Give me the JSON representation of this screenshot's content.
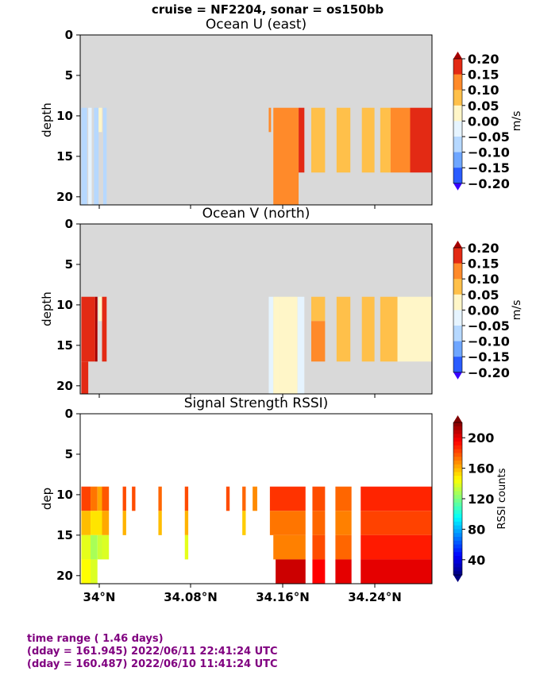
{
  "suptitle": "cruise = NF2204,  sonar = os150bb",
  "colors": {
    "nodata": "#d9d9d9",
    "footer": "#800080"
  },
  "x_ticks": [
    "34°N",
    "34.08°N",
    "34.16°N",
    "34.24°N"
  ],
  "panels": [
    {
      "title": "Ocean U (east)",
      "ylabel": "depth",
      "yticks": [
        "0",
        "5",
        "10",
        "15",
        "20"
      ],
      "colorbar": {
        "label": "m/s",
        "tick_labels": [
          "0.20",
          "0.15",
          "0.10",
          "0.05",
          "0.00",
          "−0.05",
          "−0.10",
          "−0.15",
          "−0.20"
        ]
      }
    },
    {
      "title": "Ocean V (north)",
      "ylabel": "depth",
      "yticks": [
        "0",
        "5",
        "10",
        "15",
        "20"
      ],
      "colorbar": {
        "label": "m/s",
        "tick_labels": [
          "0.20",
          "0.15",
          "0.10",
          "0.05",
          "0.00",
          "−0.05",
          "−0.10",
          "−0.15",
          "−0.20"
        ]
      }
    },
    {
      "title": "Signal Strength RSSI)",
      "ylabel": "dep",
      "yticks": [
        "0",
        "5",
        "10",
        "15",
        "20"
      ],
      "colorbar": {
        "label": "RSSI counts",
        "tick_labels": [
          "200",
          "160",
          "120",
          "80",
          "40"
        ]
      }
    }
  ],
  "footer": {
    "line1": "time range ( 1.46 days)",
    "line2": "(dday = 161.945) 2022/06/11 22:41:24 UTC",
    "line3": "(dday = 160.487) 2022/06/10 11:41:24 UTC"
  },
  "chart_data": [
    {
      "type": "heatmap",
      "title": "Ocean U (east)",
      "ylabel": "depth",
      "colorbar_label": "m/s",
      "x_unit": "latitude (°N)",
      "xlim": [
        33.987,
        34.293
      ],
      "ylim": [
        21,
        0
      ],
      "vlim": [
        -0.2,
        0.2
      ],
      "cells": [
        {
          "x": [
            33.988,
            33.993
          ],
          "y": [
            9,
            21
          ],
          "v": -0.07
        },
        {
          "x": [
            33.994,
            33.997
          ],
          "y": [
            9,
            21
          ],
          "v": -0.03
        },
        {
          "x": [
            33.999,
            34.003
          ],
          "y": [
            9,
            21
          ],
          "v": -0.06
        },
        {
          "x": [
            34.003,
            34.006
          ],
          "y": [
            9,
            12
          ],
          "v": 0.0
        },
        {
          "x": [
            34.007,
            34.01
          ],
          "y": [
            9,
            21
          ],
          "v": -0.06
        },
        {
          "x": [
            34.151,
            34.153
          ],
          "y": [
            9,
            12
          ],
          "v": 0.12
        },
        {
          "x": [
            34.155,
            34.177
          ],
          "y": [
            9,
            21
          ],
          "v": 0.12
        },
        {
          "x": [
            34.177,
            34.182
          ],
          "y": [
            9,
            17
          ],
          "v": 0.17
        },
        {
          "x": [
            34.188,
            34.2
          ],
          "y": [
            9,
            17
          ],
          "v": 0.07
        },
        {
          "x": [
            34.21,
            34.222
          ],
          "y": [
            9,
            17
          ],
          "v": 0.07
        },
        {
          "x": [
            34.232,
            34.243
          ],
          "y": [
            9,
            17
          ],
          "v": 0.07
        },
        {
          "x": [
            34.248,
            34.257
          ],
          "y": [
            9,
            17
          ],
          "v": 0.07
        },
        {
          "x": [
            34.257,
            34.274
          ],
          "y": [
            9,
            17
          ],
          "v": 0.12
        },
        {
          "x": [
            34.274,
            34.293
          ],
          "y": [
            9,
            17
          ],
          "v": 0.17
        }
      ]
    },
    {
      "type": "heatmap",
      "title": "Ocean V (north)",
      "ylabel": "depth",
      "colorbar_label": "m/s",
      "x_unit": "latitude (°N)",
      "xlim": [
        33.987,
        34.293
      ],
      "ylim": [
        21,
        0
      ],
      "vlim": [
        -0.2,
        0.2
      ],
      "cells": [
        {
          "x": [
            33.988,
            34.0
          ],
          "y": [
            9,
            17
          ],
          "v": 0.17
        },
        {
          "x": [
            33.988,
            33.994
          ],
          "y": [
            17,
            21
          ],
          "v": 0.17
        },
        {
          "x": [
            34.0,
            34.002
          ],
          "y": [
            9,
            17
          ],
          "v": 0.22
        },
        {
          "x": [
            34.003,
            34.006
          ],
          "y": [
            9,
            12
          ],
          "v": 0.03
        },
        {
          "x": [
            34.006,
            34.01
          ],
          "y": [
            9,
            17
          ],
          "v": 0.17
        },
        {
          "x": [
            34.151,
            34.155
          ],
          "y": [
            9,
            21
          ],
          "v": -0.03
        },
        {
          "x": [
            34.155,
            34.16
          ],
          "y": [
            9,
            21
          ],
          "v": 0.03
        },
        {
          "x": [
            34.16,
            34.176
          ],
          "y": [
            9,
            21
          ],
          "v": 0.03
        },
        {
          "x": [
            34.176,
            34.182
          ],
          "y": [
            9,
            21
          ],
          "v": -0.03
        },
        {
          "x": [
            34.188,
            34.2
          ],
          "y": [
            9,
            12
          ],
          "v": 0.07
        },
        {
          "x": [
            34.188,
            34.2
          ],
          "y": [
            12,
            17
          ],
          "v": 0.12
        },
        {
          "x": [
            34.21,
            34.222
          ],
          "y": [
            9,
            17
          ],
          "v": 0.07
        },
        {
          "x": [
            34.232,
            34.243
          ],
          "y": [
            9,
            17
          ],
          "v": 0.07
        },
        {
          "x": [
            34.248,
            34.263
          ],
          "y": [
            9,
            17
          ],
          "v": 0.07
        },
        {
          "x": [
            34.263,
            34.293
          ],
          "y": [
            9,
            17
          ],
          "v": 0.03
        }
      ]
    },
    {
      "type": "heatmap",
      "title": "Signal Strength RSSI)",
      "ylabel": "dep",
      "colorbar_label": "RSSI counts",
      "x_unit": "latitude (°N)",
      "xlim": [
        33.987,
        34.293
      ],
      "ylim": [
        21,
        0
      ],
      "vlim": [
        20,
        220
      ],
      "cells": [
        {
          "x": [
            33.988,
            33.996
          ],
          "y": [
            9,
            12
          ],
          "v": 182
        },
        {
          "x": [
            33.996,
            34.002
          ],
          "y": [
            9,
            12
          ],
          "v": 172
        },
        {
          "x": [
            34.002,
            34.006
          ],
          "y": [
            9,
            12
          ],
          "v": 162
        },
        {
          "x": [
            34.006,
            34.012
          ],
          "y": [
            9,
            12
          ],
          "v": 178
        },
        {
          "x": [
            34.024,
            34.027
          ],
          "y": [
            9,
            12
          ],
          "v": 180
        },
        {
          "x": [
            34.032,
            34.035
          ],
          "y": [
            9,
            12
          ],
          "v": 180
        },
        {
          "x": [
            34.055,
            34.058
          ],
          "y": [
            9,
            12
          ],
          "v": 175
        },
        {
          "x": [
            34.078,
            34.081
          ],
          "y": [
            9,
            12
          ],
          "v": 180
        },
        {
          "x": [
            34.114,
            34.117
          ],
          "y": [
            9,
            12
          ],
          "v": 180
        },
        {
          "x": [
            34.128,
            34.131
          ],
          "y": [
            9,
            12
          ],
          "v": 175
        },
        {
          "x": [
            34.137,
            34.141
          ],
          "y": [
            9,
            12
          ],
          "v": 168
        },
        {
          "x": [
            34.152,
            34.183
          ],
          "y": [
            9,
            12
          ],
          "v": 185
        },
        {
          "x": [
            34.189,
            34.2
          ],
          "y": [
            9,
            12
          ],
          "v": 180
        },
        {
          "x": [
            34.209,
            34.223
          ],
          "y": [
            9,
            12
          ],
          "v": 175
        },
        {
          "x": [
            34.231,
            34.293
          ],
          "y": [
            9,
            12
          ],
          "v": 188
        },
        {
          "x": [
            33.988,
            33.996
          ],
          "y": [
            12,
            15
          ],
          "v": 158
        },
        {
          "x": [
            33.996,
            34.006
          ],
          "y": [
            12,
            15
          ],
          "v": 150
        },
        {
          "x": [
            34.006,
            34.012
          ],
          "y": [
            12,
            15
          ],
          "v": 162
        },
        {
          "x": [
            34.024,
            34.027
          ],
          "y": [
            12,
            15
          ],
          "v": 160
        },
        {
          "x": [
            34.055,
            34.058
          ],
          "y": [
            12,
            15
          ],
          "v": 158
        },
        {
          "x": [
            34.078,
            34.081
          ],
          "y": [
            12,
            15
          ],
          "v": 160
        },
        {
          "x": [
            34.128,
            34.131
          ],
          "y": [
            12,
            15
          ],
          "v": 155
        },
        {
          "x": [
            34.152,
            34.183
          ],
          "y": [
            12,
            15
          ],
          "v": 172
        },
        {
          "x": [
            34.189,
            34.2
          ],
          "y": [
            12,
            15
          ],
          "v": 175
        },
        {
          "x": [
            34.209,
            34.223
          ],
          "y": [
            12,
            15
          ],
          "v": 170
        },
        {
          "x": [
            34.231,
            34.293
          ],
          "y": [
            12,
            15
          ],
          "v": 182
        },
        {
          "x": [
            33.988,
            33.996
          ],
          "y": [
            15,
            18
          ],
          "v": 140
        },
        {
          "x": [
            33.996,
            34.002
          ],
          "y": [
            15,
            18
          ],
          "v": 128
        },
        {
          "x": [
            34.002,
            34.006
          ],
          "y": [
            15,
            18
          ],
          "v": 135
        },
        {
          "x": [
            34.006,
            34.012
          ],
          "y": [
            15,
            18
          ],
          "v": 138
        },
        {
          "x": [
            34.078,
            34.081
          ],
          "y": [
            15,
            18
          ],
          "v": 140
        },
        {
          "x": [
            34.155,
            34.183
          ],
          "y": [
            15,
            18
          ],
          "v": 170
        },
        {
          "x": [
            34.189,
            34.2
          ],
          "y": [
            15,
            18
          ],
          "v": 180
        },
        {
          "x": [
            34.209,
            34.223
          ],
          "y": [
            15,
            18
          ],
          "v": 175
        },
        {
          "x": [
            34.231,
            34.293
          ],
          "y": [
            15,
            18
          ],
          "v": 190
        },
        {
          "x": [
            33.988,
            33.996
          ],
          "y": [
            18,
            21
          ],
          "v": 145
        },
        {
          "x": [
            33.996,
            34.002
          ],
          "y": [
            18,
            21
          ],
          "v": 138
        },
        {
          "x": [
            34.157,
            34.183
          ],
          "y": [
            18,
            21
          ],
          "v": 205
        },
        {
          "x": [
            34.189,
            34.2
          ],
          "y": [
            18,
            21
          ],
          "v": 195
        },
        {
          "x": [
            34.209,
            34.223
          ],
          "y": [
            18,
            21
          ],
          "v": 200
        },
        {
          "x": [
            34.231,
            34.293
          ],
          "y": [
            18,
            21
          ],
          "v": 200
        }
      ]
    }
  ]
}
